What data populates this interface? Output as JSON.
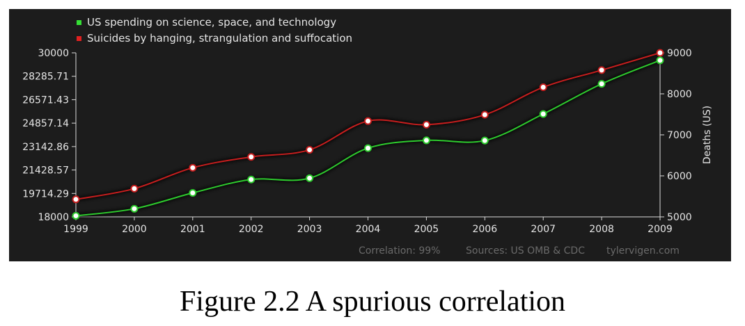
{
  "figure": {
    "caption": "Figure 2.2 A spurious correlation"
  },
  "chart_data": {
    "type": "line",
    "x": [
      1999,
      2000,
      2001,
      2002,
      2003,
      2004,
      2005,
      2006,
      2007,
      2008,
      2009
    ],
    "series": [
      {
        "name": "US spending on science, space, and technology",
        "axis": "left",
        "color": "#2ecc2e",
        "values": [
          18079,
          18594,
          19753,
          20734,
          20831,
          23029,
          23597,
          23584,
          25525,
          27731,
          29449
        ]
      },
      {
        "name": "Suicides by hanging, strangulation and suffocation",
        "axis": "right",
        "color": "#c81e1e",
        "values": [
          5427,
          5688,
          6198,
          6462,
          6635,
          7336,
          7248,
          7491,
          8161,
          8578,
          9000
        ]
      }
    ],
    "y_left": {
      "ylim": [
        18000,
        30000
      ],
      "ticks": [
        "18000",
        "19714.29",
        "21428.57",
        "23142.86",
        "24857.14",
        "26571.43",
        "28285.71",
        "30000"
      ]
    },
    "y_right": {
      "label": "Deaths (US)",
      "ylim": [
        5000,
        9000
      ],
      "ticks": [
        "5000",
        "6000",
        "7000",
        "8000",
        "9000"
      ]
    },
    "x_ticks": [
      "1999",
      "2000",
      "2001",
      "2002",
      "2003",
      "2004",
      "2005",
      "2006",
      "2007",
      "2008",
      "2009"
    ],
    "legend_position": "top-left",
    "background": "#1c1c1c",
    "footer": {
      "correlation": "Correlation: 99%",
      "sources": "Sources: US OMB & CDC",
      "site": "tylervigen.com"
    }
  }
}
